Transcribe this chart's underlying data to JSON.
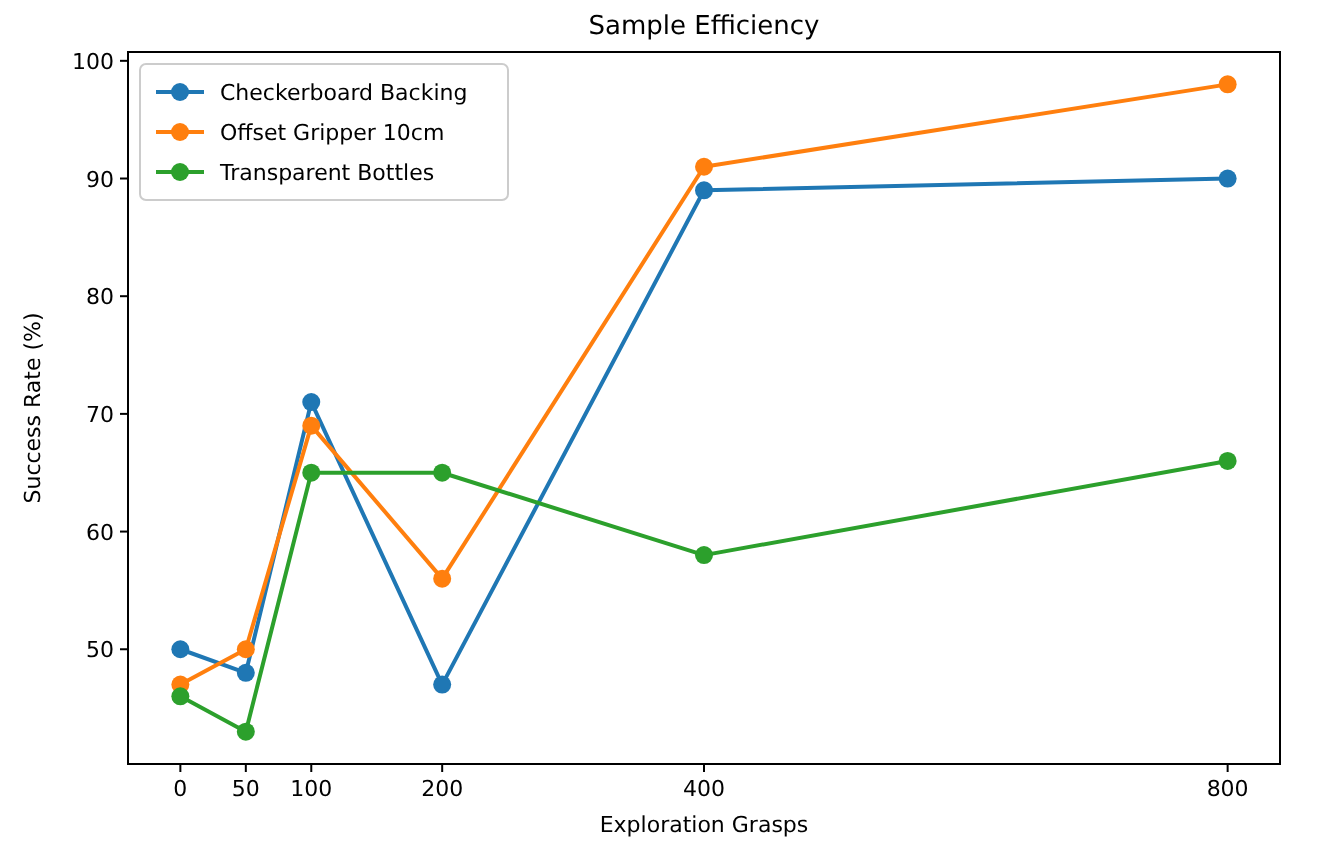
{
  "chart_data": {
    "type": "line",
    "title": "Sample Efficiency",
    "xlabel": "Exploration Grasps",
    "ylabel": "Success Rate (%)",
    "x": [
      0,
      50,
      100,
      200,
      400,
      800
    ],
    "series": [
      {
        "name": "Checkerboard Backing",
        "color": "#1f77b4",
        "values": [
          50,
          48,
          71,
          47,
          89,
          90
        ]
      },
      {
        "name": "Offset Gripper 10cm",
        "color": "#ff7f0e",
        "values": [
          47,
          50,
          69,
          56,
          91,
          98
        ]
      },
      {
        "name": "Transparent Bottles",
        "color": "#2ca02c",
        "values": [
          46,
          43,
          65,
          65,
          58,
          66
        ]
      }
    ],
    "xlim": [
      -40,
      840
    ],
    "xticks": [
      0,
      50,
      100,
      200,
      400,
      800
    ],
    "ylim": [
      40.25,
      100.75
    ],
    "yticks": [
      50,
      60,
      70,
      80,
      90,
      100
    ],
    "grid": false,
    "legend": "top left",
    "marker": "circle",
    "line_style": "solid"
  }
}
